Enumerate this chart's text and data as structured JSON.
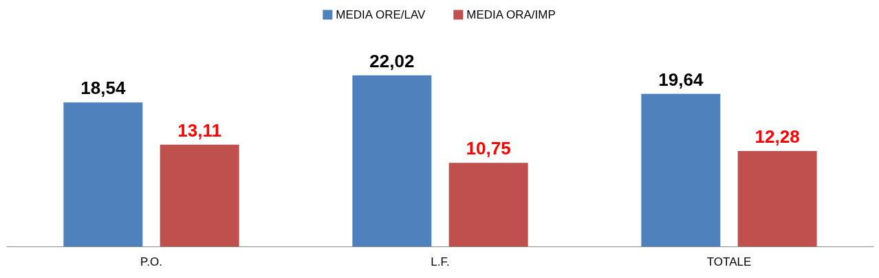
{
  "chart_data": {
    "type": "bar",
    "categories": [
      "P.O.",
      "L.F.",
      "TOTALE"
    ],
    "series": [
      {
        "name": "MEDIA ORE/LAV",
        "color": "#4f81bd",
        "values": [
          18.54,
          22.02,
          19.64
        ],
        "value_labels": [
          "18,54",
          "22,02",
          "19,64"
        ]
      },
      {
        "name": "MEDIA ORA/IMP",
        "color": "#c0504d",
        "values": [
          13.11,
          10.75,
          12.28
        ],
        "value_labels": [
          "13,11",
          "10,75",
          "12,28"
        ]
      }
    ],
    "legend": "top",
    "grid": false
  }
}
